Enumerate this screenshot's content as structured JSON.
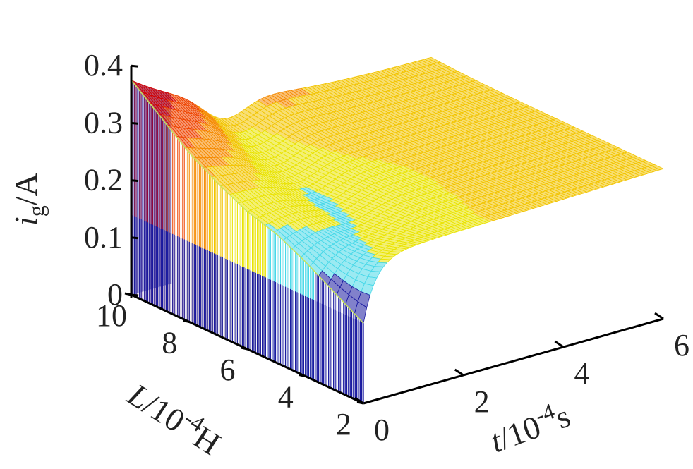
{
  "chart_data": {
    "type": "surface",
    "title": "",
    "z_label": {
      "var": "i",
      "sub": "g",
      "unit": "/A"
    },
    "t_label": {
      "var": "t",
      "unit": "/10",
      "sup": "-4",
      "tail": "s"
    },
    "L_label": {
      "var": "L",
      "unit": "/10",
      "sup": "-4",
      "tail": "H"
    },
    "z_ticks": [
      "0",
      "0.1",
      "0.2",
      "0.3",
      "0.4"
    ],
    "t_ticks": [
      "0",
      "2",
      "4",
      "6"
    ],
    "L_ticks": [
      "2",
      "4",
      "6",
      "8",
      "10"
    ],
    "z_range": [
      0,
      0.4
    ],
    "t_range": [
      0,
      6
    ],
    "L_range": [
      2,
      10
    ],
    "units": {
      "t": "1e-4 s",
      "L": "1e-4 H",
      "z": "A"
    },
    "slices": [
      {
        "L": 10,
        "peak": 0.375,
        "color": "#d40000"
      },
      {
        "L": 9.5,
        "peak": 0.355,
        "color": "#e21a00"
      },
      {
        "L": 9,
        "peak": 0.335,
        "color": "#ee4400"
      },
      {
        "L": 8.5,
        "peak": 0.315,
        "color": "#f58000"
      },
      {
        "L": 8,
        "peak": 0.295,
        "color": "#f7c400"
      },
      {
        "L": 7,
        "peak": 0.265,
        "color": "#eee000"
      },
      {
        "L": 6,
        "peak": 0.24,
        "color": "#c8e45a"
      },
      {
        "L": 5,
        "peak": 0.225,
        "color": "#48d8e8"
      },
      {
        "L": 4,
        "peak": 0.2,
        "color": "#30b0e0"
      },
      {
        "L": 2,
        "peak": 0.14,
        "color": "#1a1aa0"
      }
    ],
    "steady_value": 0.25,
    "legend": "none",
    "grid": false
  }
}
